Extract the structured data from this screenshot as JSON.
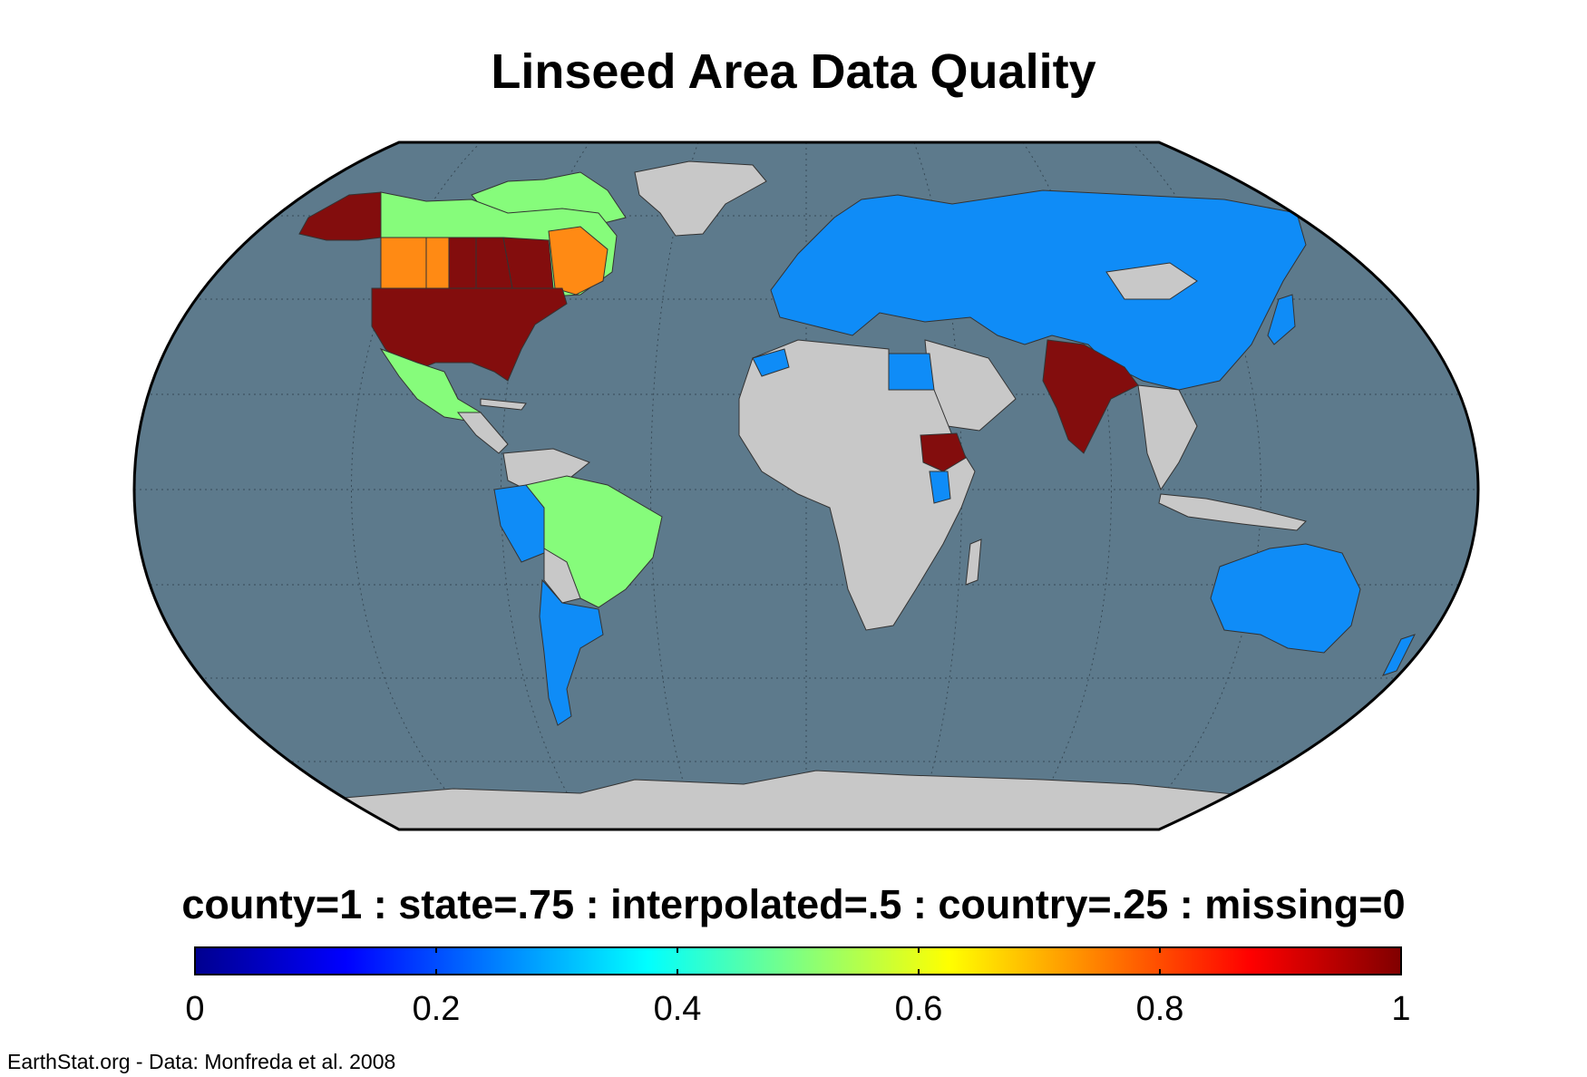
{
  "title": "Linseed Area Data Quality",
  "legend": {
    "caption": "county=1 : state=.75 : interpolated=.5 : country=.25 : missing=0",
    "colormap": "jet",
    "range": [
      0,
      1
    ],
    "ticks": [
      "0",
      "0.2",
      "0.4",
      "0.6",
      "0.8",
      "1"
    ]
  },
  "colors": {
    "ocean": "#5d7a8c",
    "missing_land": "#c8c8c8",
    "country": "#0f8cf7",
    "interpolated": "#86fc7b",
    "state": "#ff8a14",
    "county": "#830d0d"
  },
  "regions": [
    {
      "name": "United States",
      "quality": "county"
    },
    {
      "name": "Alaska",
      "quality": "county"
    },
    {
      "name": "Canada prairie provinces",
      "quality": "county"
    },
    {
      "name": "British Columbia",
      "quality": "state"
    },
    {
      "name": "Quebec",
      "quality": "state"
    },
    {
      "name": "Northern Canada",
      "quality": "interpolated"
    },
    {
      "name": "Mexico",
      "quality": "interpolated"
    },
    {
      "name": "Brazil",
      "quality": "interpolated"
    },
    {
      "name": "Russia",
      "quality": "country"
    },
    {
      "name": "Europe",
      "quality": "country"
    },
    {
      "name": "China",
      "quality": "country"
    },
    {
      "name": "Australia",
      "quality": "country"
    },
    {
      "name": "Argentina",
      "quality": "country"
    },
    {
      "name": "India",
      "quality": "county"
    },
    {
      "name": "Ethiopia",
      "quality": "county"
    },
    {
      "name": "Africa",
      "quality": "missing"
    },
    {
      "name": "Greenland",
      "quality": "missing"
    },
    {
      "name": "Antarctica",
      "quality": "missing"
    }
  ],
  "credit": "EarthStat.org - Data: Monfreda et al. 2008"
}
